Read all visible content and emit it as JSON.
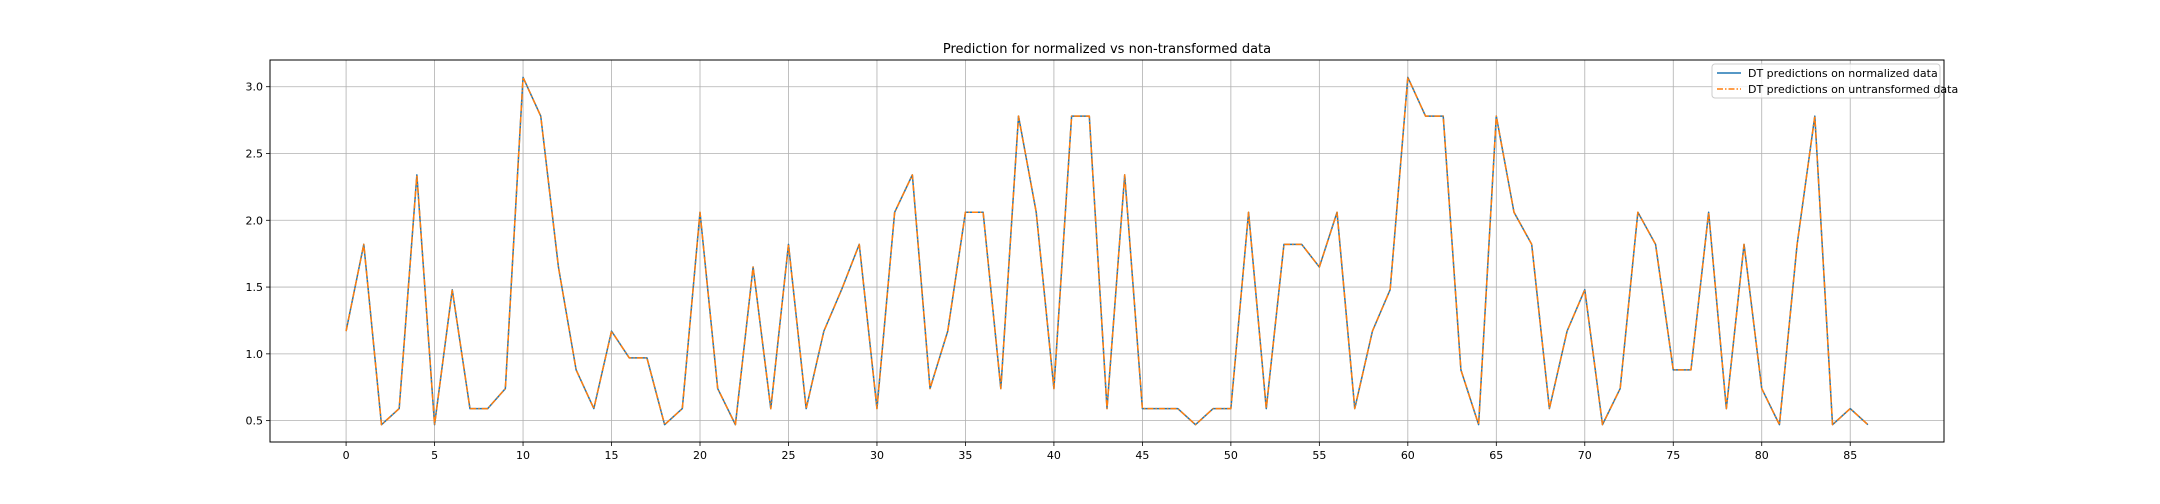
{
  "chart_data": {
    "type": "line",
    "title": "Prediction for normalized vs non-transformed data",
    "xlabel": "",
    "ylabel": "",
    "xlim": [
      -4.3,
      90.3
    ],
    "ylim": [
      0.34,
      3.2
    ],
    "xticks": [
      0,
      5,
      10,
      15,
      20,
      25,
      30,
      35,
      40,
      45,
      50,
      55,
      60,
      65,
      70,
      75,
      80,
      85
    ],
    "yticks": [
      0.5,
      1.0,
      1.5,
      2.0,
      2.5,
      3.0
    ],
    "ytick_labels": [
      "0.5",
      "1.0",
      "1.5",
      "2.0",
      "2.5",
      "3.0"
    ],
    "grid": true,
    "legend_position": "top-right",
    "x": [
      0,
      1,
      2,
      3,
      4,
      5,
      6,
      7,
      8,
      9,
      10,
      11,
      12,
      13,
      14,
      15,
      16,
      17,
      18,
      19,
      20,
      21,
      22,
      23,
      24,
      25,
      26,
      27,
      28,
      29,
      30,
      31,
      32,
      33,
      34,
      35,
      36,
      37,
      38,
      39,
      40,
      41,
      42,
      43,
      44,
      45,
      46,
      47,
      48,
      49,
      50,
      51,
      52,
      53,
      54,
      55,
      56,
      57,
      58,
      59,
      60,
      61,
      62,
      63,
      64,
      65,
      66,
      67,
      68,
      69,
      70,
      71,
      72,
      73,
      74,
      75,
      76,
      77,
      78,
      79,
      80,
      81,
      82,
      83,
      84,
      85,
      86
    ],
    "series": [
      {
        "name": "DT predictions on normalized data",
        "color": "#1f77b4",
        "linestyle": "solid",
        "values": [
          1.17,
          1.82,
          0.47,
          0.59,
          2.34,
          0.47,
          1.48,
          0.59,
          0.59,
          0.74,
          3.07,
          2.78,
          1.65,
          0.88,
          0.59,
          1.17,
          0.97,
          0.97,
          0.47,
          0.59,
          2.06,
          0.74,
          0.47,
          1.65,
          0.59,
          1.82,
          0.59,
          1.17,
          1.48,
          1.82,
          0.59,
          2.06,
          2.34,
          0.74,
          1.17,
          2.06,
          2.06,
          0.74,
          2.78,
          2.06,
          0.74,
          2.78,
          2.78,
          0.59,
          2.34,
          0.59,
          0.59,
          0.59,
          0.47,
          0.59,
          0.59,
          2.06,
          0.59,
          1.82,
          1.82,
          1.65,
          2.06,
          0.59,
          1.17,
          1.48,
          3.07,
          2.78,
          2.78,
          0.88,
          0.47,
          2.78,
          2.06,
          1.82,
          0.59,
          1.17,
          1.48,
          0.47,
          0.74,
          2.06,
          1.82,
          0.88,
          0.88,
          2.06,
          0.59,
          1.82,
          0.74,
          0.47,
          1.82,
          2.78,
          0.47,
          0.59,
          0.47
        ]
      },
      {
        "name": "DT predictions on untransformed data",
        "color": "#ff7f0e",
        "linestyle": "dashdot",
        "values": [
          1.17,
          1.82,
          0.47,
          0.59,
          2.34,
          0.47,
          1.48,
          0.59,
          0.59,
          0.74,
          3.07,
          2.78,
          1.65,
          0.88,
          0.59,
          1.17,
          0.97,
          0.97,
          0.47,
          0.59,
          2.06,
          0.74,
          0.47,
          1.65,
          0.59,
          1.82,
          0.59,
          1.17,
          1.48,
          1.82,
          0.59,
          2.06,
          2.34,
          0.74,
          1.17,
          2.06,
          2.06,
          0.74,
          2.78,
          2.06,
          0.74,
          2.78,
          2.78,
          0.59,
          2.34,
          0.59,
          0.59,
          0.59,
          0.47,
          0.59,
          0.59,
          2.06,
          0.59,
          1.82,
          1.82,
          1.65,
          2.06,
          0.59,
          1.17,
          1.48,
          3.07,
          2.78,
          2.78,
          0.88,
          0.47,
          2.78,
          2.06,
          1.82,
          0.59,
          1.17,
          1.48,
          0.47,
          0.74,
          2.06,
          1.82,
          0.88,
          0.88,
          2.06,
          0.59,
          1.82,
          0.74,
          0.47,
          1.82,
          2.78,
          0.47,
          0.59,
          0.47
        ]
      }
    ]
  }
}
